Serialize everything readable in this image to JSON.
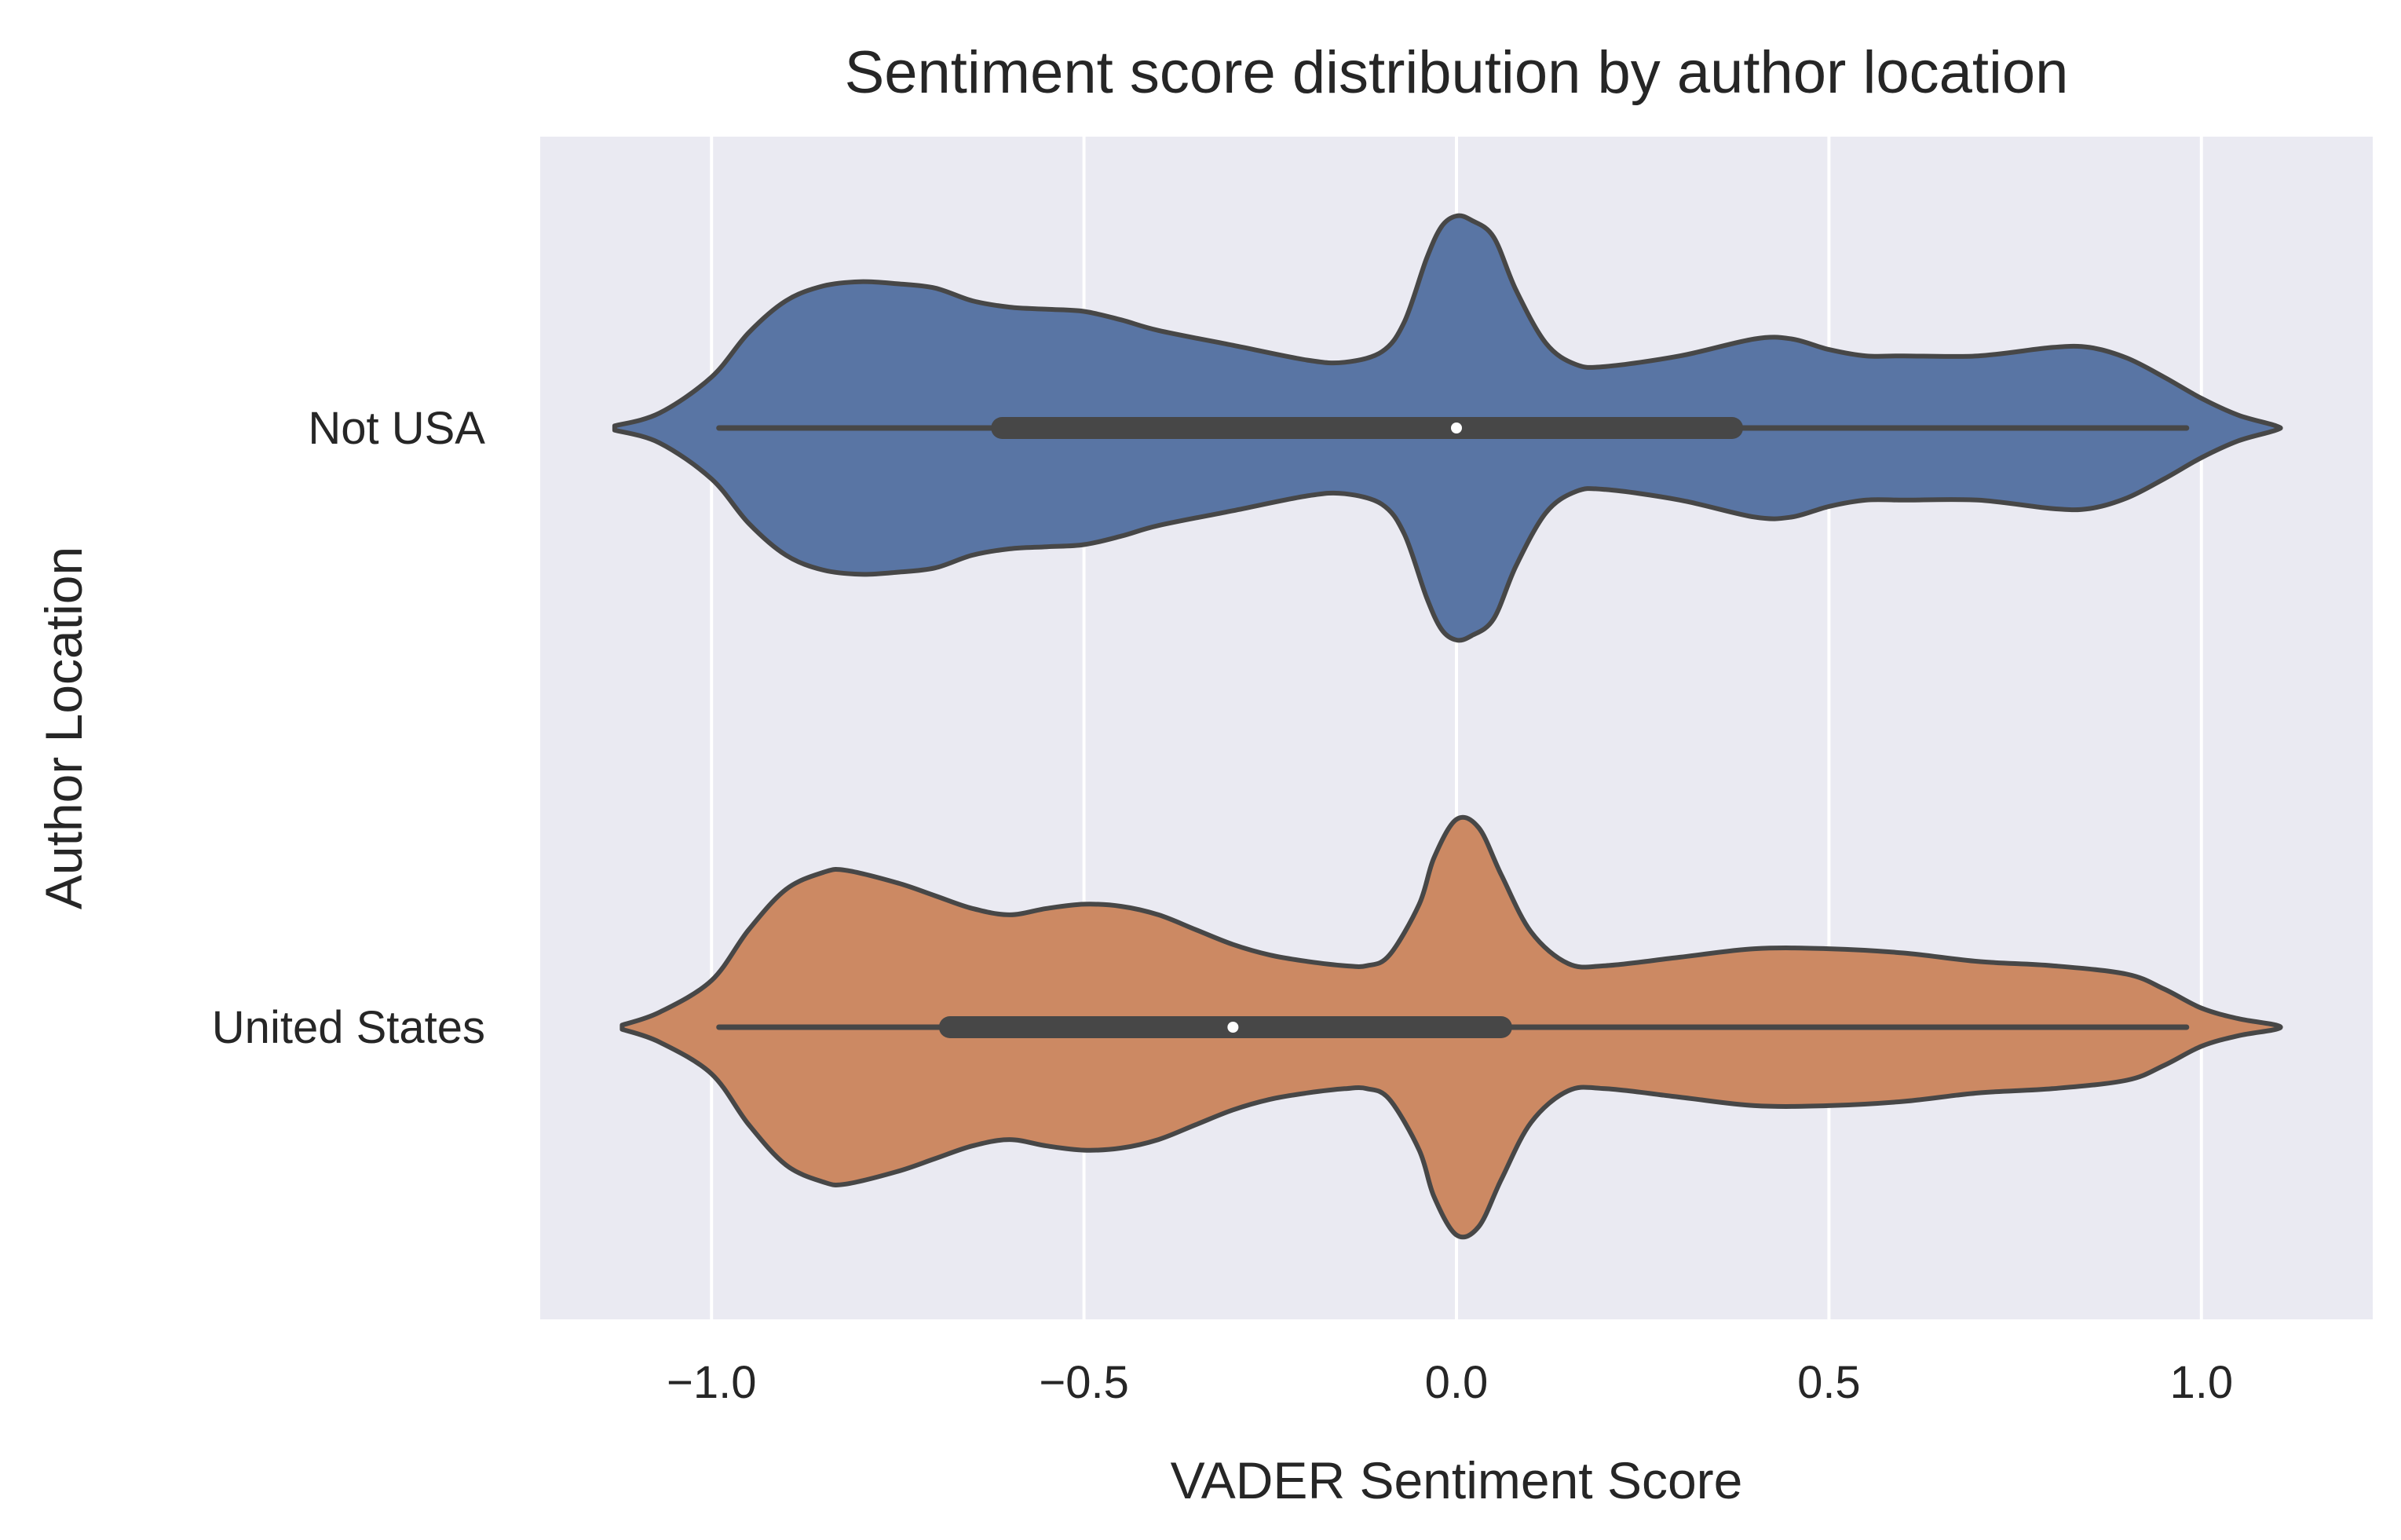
{
  "chart_data": {
    "type": "violin",
    "orientation": "horizontal",
    "title": "Sentiment score distribution by author location",
    "xlabel": "VADER Sentiment Score",
    "ylabel": "Author Location",
    "xlim": [
      -1.23,
      1.23
    ],
    "x_ticks": [
      -1.0,
      -0.5,
      0.0,
      0.5,
      1.0
    ],
    "x_tick_labels": [
      "−1.0",
      "−0.5",
      "0.0",
      "0.5",
      "1.0"
    ],
    "grid": true,
    "grid_axis": "x",
    "background_color": "#eaeaf2",
    "categories": [
      "Not USA",
      "United States"
    ],
    "series": [
      {
        "category": "Not USA",
        "color": "#5975a4",
        "median": 0.0,
        "q1": -0.61,
        "q3": 0.37,
        "whisker_low": -0.99,
        "whisker_high": 0.98,
        "density": [
          [
            -1.13,
            0.01
          ],
          [
            -1.07,
            0.07
          ],
          [
            -1.0,
            0.24
          ],
          [
            -0.95,
            0.45
          ],
          [
            -0.9,
            0.6
          ],
          [
            -0.85,
            0.67
          ],
          [
            -0.8,
            0.69
          ],
          [
            -0.75,
            0.68
          ],
          [
            -0.7,
            0.66
          ],
          [
            -0.65,
            0.6
          ],
          [
            -0.6,
            0.57
          ],
          [
            -0.55,
            0.56
          ],
          [
            -0.5,
            0.55
          ],
          [
            -0.45,
            0.51
          ],
          [
            -0.4,
            0.46
          ],
          [
            -0.3,
            0.39
          ],
          [
            -0.2,
            0.32
          ],
          [
            -0.15,
            0.31
          ],
          [
            -0.1,
            0.36
          ],
          [
            -0.07,
            0.5
          ],
          [
            -0.04,
            0.8
          ],
          [
            -0.02,
            0.95
          ],
          [
            0.0,
            1.0
          ],
          [
            0.02,
            0.98
          ],
          [
            0.05,
            0.9
          ],
          [
            0.08,
            0.65
          ],
          [
            0.12,
            0.4
          ],
          [
            0.16,
            0.3
          ],
          [
            0.2,
            0.29
          ],
          [
            0.3,
            0.34
          ],
          [
            0.4,
            0.42
          ],
          [
            0.45,
            0.42
          ],
          [
            0.5,
            0.37
          ],
          [
            0.55,
            0.34
          ],
          [
            0.6,
            0.34
          ],
          [
            0.7,
            0.34
          ],
          [
            0.8,
            0.38
          ],
          [
            0.85,
            0.38
          ],
          [
            0.9,
            0.33
          ],
          [
            0.95,
            0.24
          ],
          [
            1.0,
            0.14
          ],
          [
            1.05,
            0.06
          ],
          [
            1.1,
            0.01
          ]
        ]
      },
      {
        "category": "United States",
        "color": "#cc8963",
        "median": -0.3,
        "q1": -0.68,
        "q3": 0.06,
        "whisker_low": -0.99,
        "whisker_high": 0.98,
        "density": [
          [
            -1.12,
            0.01
          ],
          [
            -1.07,
            0.07
          ],
          [
            -1.0,
            0.22
          ],
          [
            -0.95,
            0.46
          ],
          [
            -0.9,
            0.65
          ],
          [
            -0.85,
            0.73
          ],
          [
            -0.82,
            0.74
          ],
          [
            -0.75,
            0.68
          ],
          [
            -0.7,
            0.62
          ],
          [
            -0.65,
            0.56
          ],
          [
            -0.6,
            0.53
          ],
          [
            -0.55,
            0.56
          ],
          [
            -0.5,
            0.58
          ],
          [
            -0.45,
            0.57
          ],
          [
            -0.4,
            0.53
          ],
          [
            -0.35,
            0.46
          ],
          [
            -0.3,
            0.39
          ],
          [
            -0.25,
            0.34
          ],
          [
            -0.2,
            0.31
          ],
          [
            -0.15,
            0.29
          ],
          [
            -0.12,
            0.29
          ],
          [
            -0.09,
            0.34
          ],
          [
            -0.05,
            0.58
          ],
          [
            -0.03,
            0.8
          ],
          [
            0.0,
            0.98
          ],
          [
            0.03,
            0.94
          ],
          [
            0.06,
            0.72
          ],
          [
            0.1,
            0.45
          ],
          [
            0.15,
            0.3
          ],
          [
            0.2,
            0.29
          ],
          [
            0.3,
            0.33
          ],
          [
            0.4,
            0.37
          ],
          [
            0.5,
            0.37
          ],
          [
            0.6,
            0.35
          ],
          [
            0.7,
            0.31
          ],
          [
            0.8,
            0.29
          ],
          [
            0.9,
            0.25
          ],
          [
            0.95,
            0.18
          ],
          [
            1.0,
            0.09
          ],
          [
            1.05,
            0.04
          ],
          [
            1.1,
            0.01
          ]
        ]
      }
    ]
  }
}
